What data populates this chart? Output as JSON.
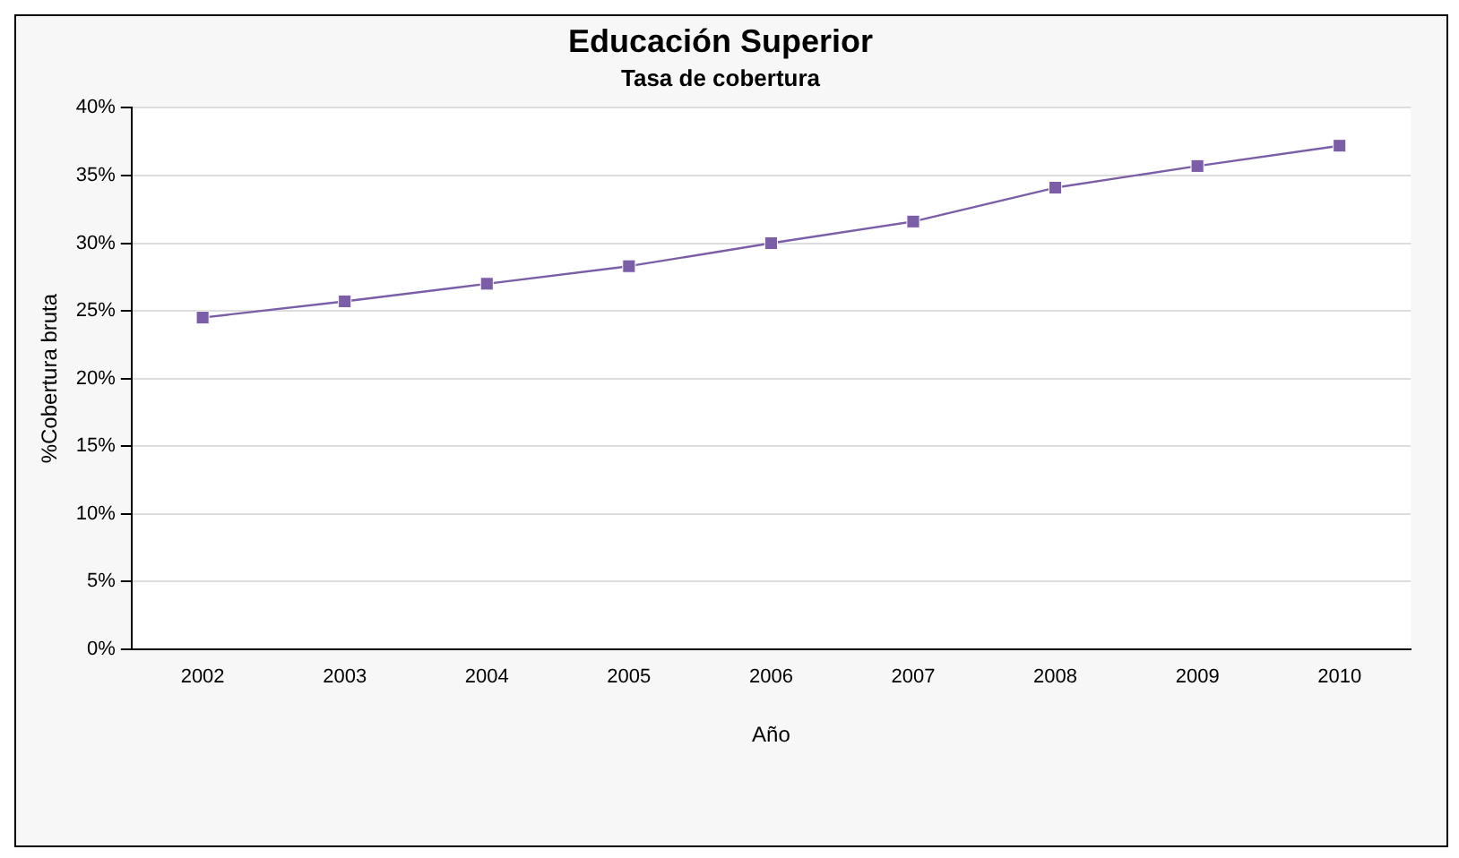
{
  "chart_data": {
    "type": "line",
    "title": "Educación Superior",
    "subtitle": "Tasa de cobertura",
    "xlabel": "Año",
    "ylabel": "%Cobertura bruta",
    "categories": [
      "2002",
      "2003",
      "2004",
      "2005",
      "2006",
      "2007",
      "2008",
      "2009",
      "2010"
    ],
    "series": [
      {
        "color": "#7b5ea7",
        "values": [
          24.5,
          25.7,
          27.0,
          28.3,
          30.0,
          31.6,
          34.1,
          35.7,
          37.2
        ]
      }
    ],
    "ylim": [
      0,
      40
    ],
    "yticks": [
      {
        "value": 0,
        "label": "0%"
      },
      {
        "value": 5,
        "label": "5%"
      },
      {
        "value": 10,
        "label": "10%"
      },
      {
        "value": 15,
        "label": "15%"
      },
      {
        "value": 20,
        "label": "20%"
      },
      {
        "value": 25,
        "label": "25%"
      },
      {
        "value": 30,
        "label": "30%"
      },
      {
        "value": 35,
        "label": "35%"
      },
      {
        "value": 40,
        "label": "40%"
      }
    ],
    "grid": "y",
    "marker": "square",
    "line_style": "solid",
    "legend": false
  }
}
